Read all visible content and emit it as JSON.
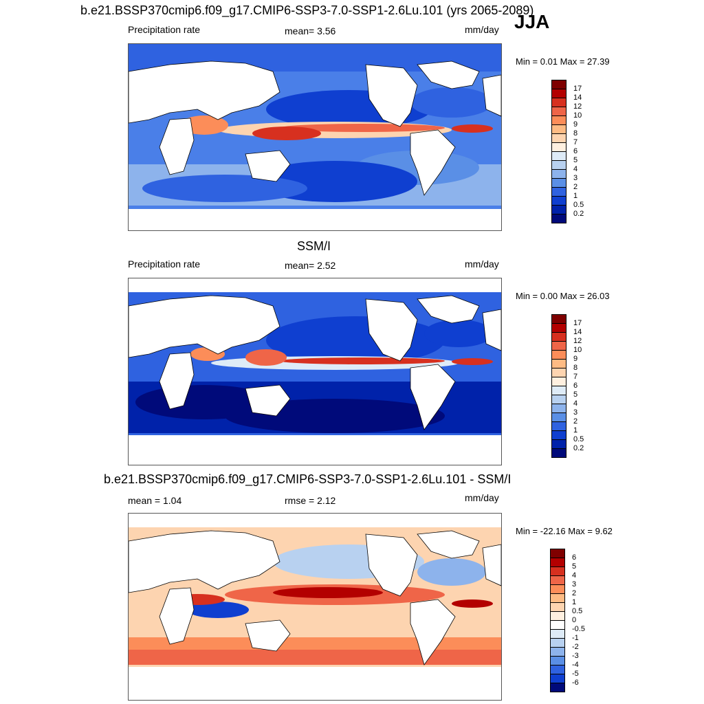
{
  "season": "JJA",
  "panels": [
    {
      "title": "b.e21.BSSP370cmip6.f09_g17.CMIP6-SSP3-7.0-SSP1-2.6Lu.101 (yrs 2065-2089)",
      "left_label": "Precipitation rate",
      "center_label": "mean=   3.56",
      "units": "mm/day",
      "minmax": "Min =   0.01 Max =  27.39",
      "colorbar_labels": [
        "17",
        "14",
        "12",
        "10",
        "9",
        "8",
        "7",
        "6",
        "5",
        "4",
        "3",
        "2",
        "1",
        "0.5",
        "0.2"
      ]
    },
    {
      "title": "SSM/I",
      "left_label": "Precipitation rate",
      "center_label": "mean=   2.52",
      "units": "mm/day",
      "minmax": "Min =   0.00 Max =  26.03",
      "colorbar_labels": [
        "17",
        "14",
        "12",
        "10",
        "9",
        "8",
        "7",
        "6",
        "5",
        "4",
        "3",
        "2",
        "1",
        "0.5",
        "0.2"
      ]
    },
    {
      "title": "b.e21.BSSP370cmip6.f09_g17.CMIP6-SSP3-7.0-SSP1-2.6Lu.101 - SSM/I",
      "left_label": "mean =   1.04",
      "center_label": "rmse =   2.12",
      "units": "mm/day",
      "minmax": "Min = -22.16 Max =   9.62",
      "colorbar_labels": [
        "6",
        "5",
        "4",
        "3",
        "2",
        "1",
        "0.5",
        "0",
        "-0.5",
        "-1",
        "-2",
        "-3",
        "-4",
        "-5",
        "-6"
      ]
    }
  ],
  "colors": {
    "precip_scale": [
      "#7f0000",
      "#b30000",
      "#d7301f",
      "#ef6548",
      "#fc8d59",
      "#fdbb84",
      "#fdd4b0",
      "#fff0e0",
      "#deebf7",
      "#b8d1f0",
      "#8db3ec",
      "#5a8fe6",
      "#2f62e0",
      "#0f3fd0",
      "#0022aa",
      "#000a7a"
    ],
    "diff_scale": [
      "#7f0000",
      "#b30000",
      "#d7301f",
      "#ef6548",
      "#fc8d59",
      "#fdbb84",
      "#fdd4b0",
      "#fff0e0",
      "#ffffff",
      "#deebf7",
      "#b8d1f0",
      "#8db3ec",
      "#5a8fe6",
      "#2f62e0",
      "#0f3fd0",
      "#000a7a"
    ]
  }
}
